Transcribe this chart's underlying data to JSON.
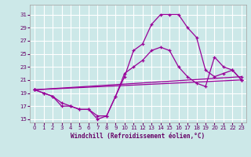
{
  "bg_color": "#cce8e8",
  "line_color": "#990099",
  "grid_color": "#ffffff",
  "xlabel": "Windchill (Refroidissement éolien,°C)",
  "xlabel_color": "#660066",
  "tick_color": "#660066",
  "ylim": [
    14.5,
    32.5
  ],
  "xlim": [
    -0.5,
    23.5
  ],
  "yticks": [
    15,
    17,
    19,
    21,
    23,
    25,
    27,
    29,
    31
  ],
  "xticks": [
    0,
    1,
    2,
    3,
    4,
    5,
    6,
    7,
    8,
    9,
    10,
    11,
    12,
    13,
    14,
    15,
    16,
    17,
    18,
    19,
    20,
    21,
    22,
    23
  ],
  "lines": [
    {
      "x": [
        0,
        1,
        2,
        3,
        4,
        5,
        6,
        7,
        8,
        9,
        10,
        11,
        12,
        13,
        14,
        15,
        16,
        17,
        18,
        19,
        20,
        21,
        22,
        23
      ],
      "y": [
        19.5,
        19.0,
        18.5,
        17.0,
        17.0,
        16.5,
        16.5,
        15.0,
        15.5,
        18.5,
        21.5,
        25.5,
        26.5,
        29.5,
        31.0,
        31.0,
        31.0,
        29.0,
        27.5,
        22.5,
        21.5,
        22.0,
        22.5,
        21.0
      ]
    },
    {
      "x": [
        0,
        1,
        2,
        3,
        4,
        5,
        6,
        7,
        8,
        9,
        10,
        11,
        12,
        13,
        14,
        15,
        16,
        17,
        18,
        19,
        20,
        21,
        22,
        23
      ],
      "y": [
        19.5,
        19.0,
        18.5,
        17.5,
        17.0,
        16.5,
        16.5,
        15.5,
        15.5,
        18.5,
        22.0,
        23.0,
        24.0,
        25.5,
        26.0,
        25.5,
        23.0,
        21.5,
        20.5,
        20.0,
        24.5,
        23.0,
        22.5,
        21.0
      ]
    },
    {
      "x": [
        0,
        23
      ],
      "y": [
        19.5,
        21.0
      ]
    },
    {
      "x": [
        0,
        23
      ],
      "y": [
        19.5,
        21.5
      ]
    }
  ]
}
